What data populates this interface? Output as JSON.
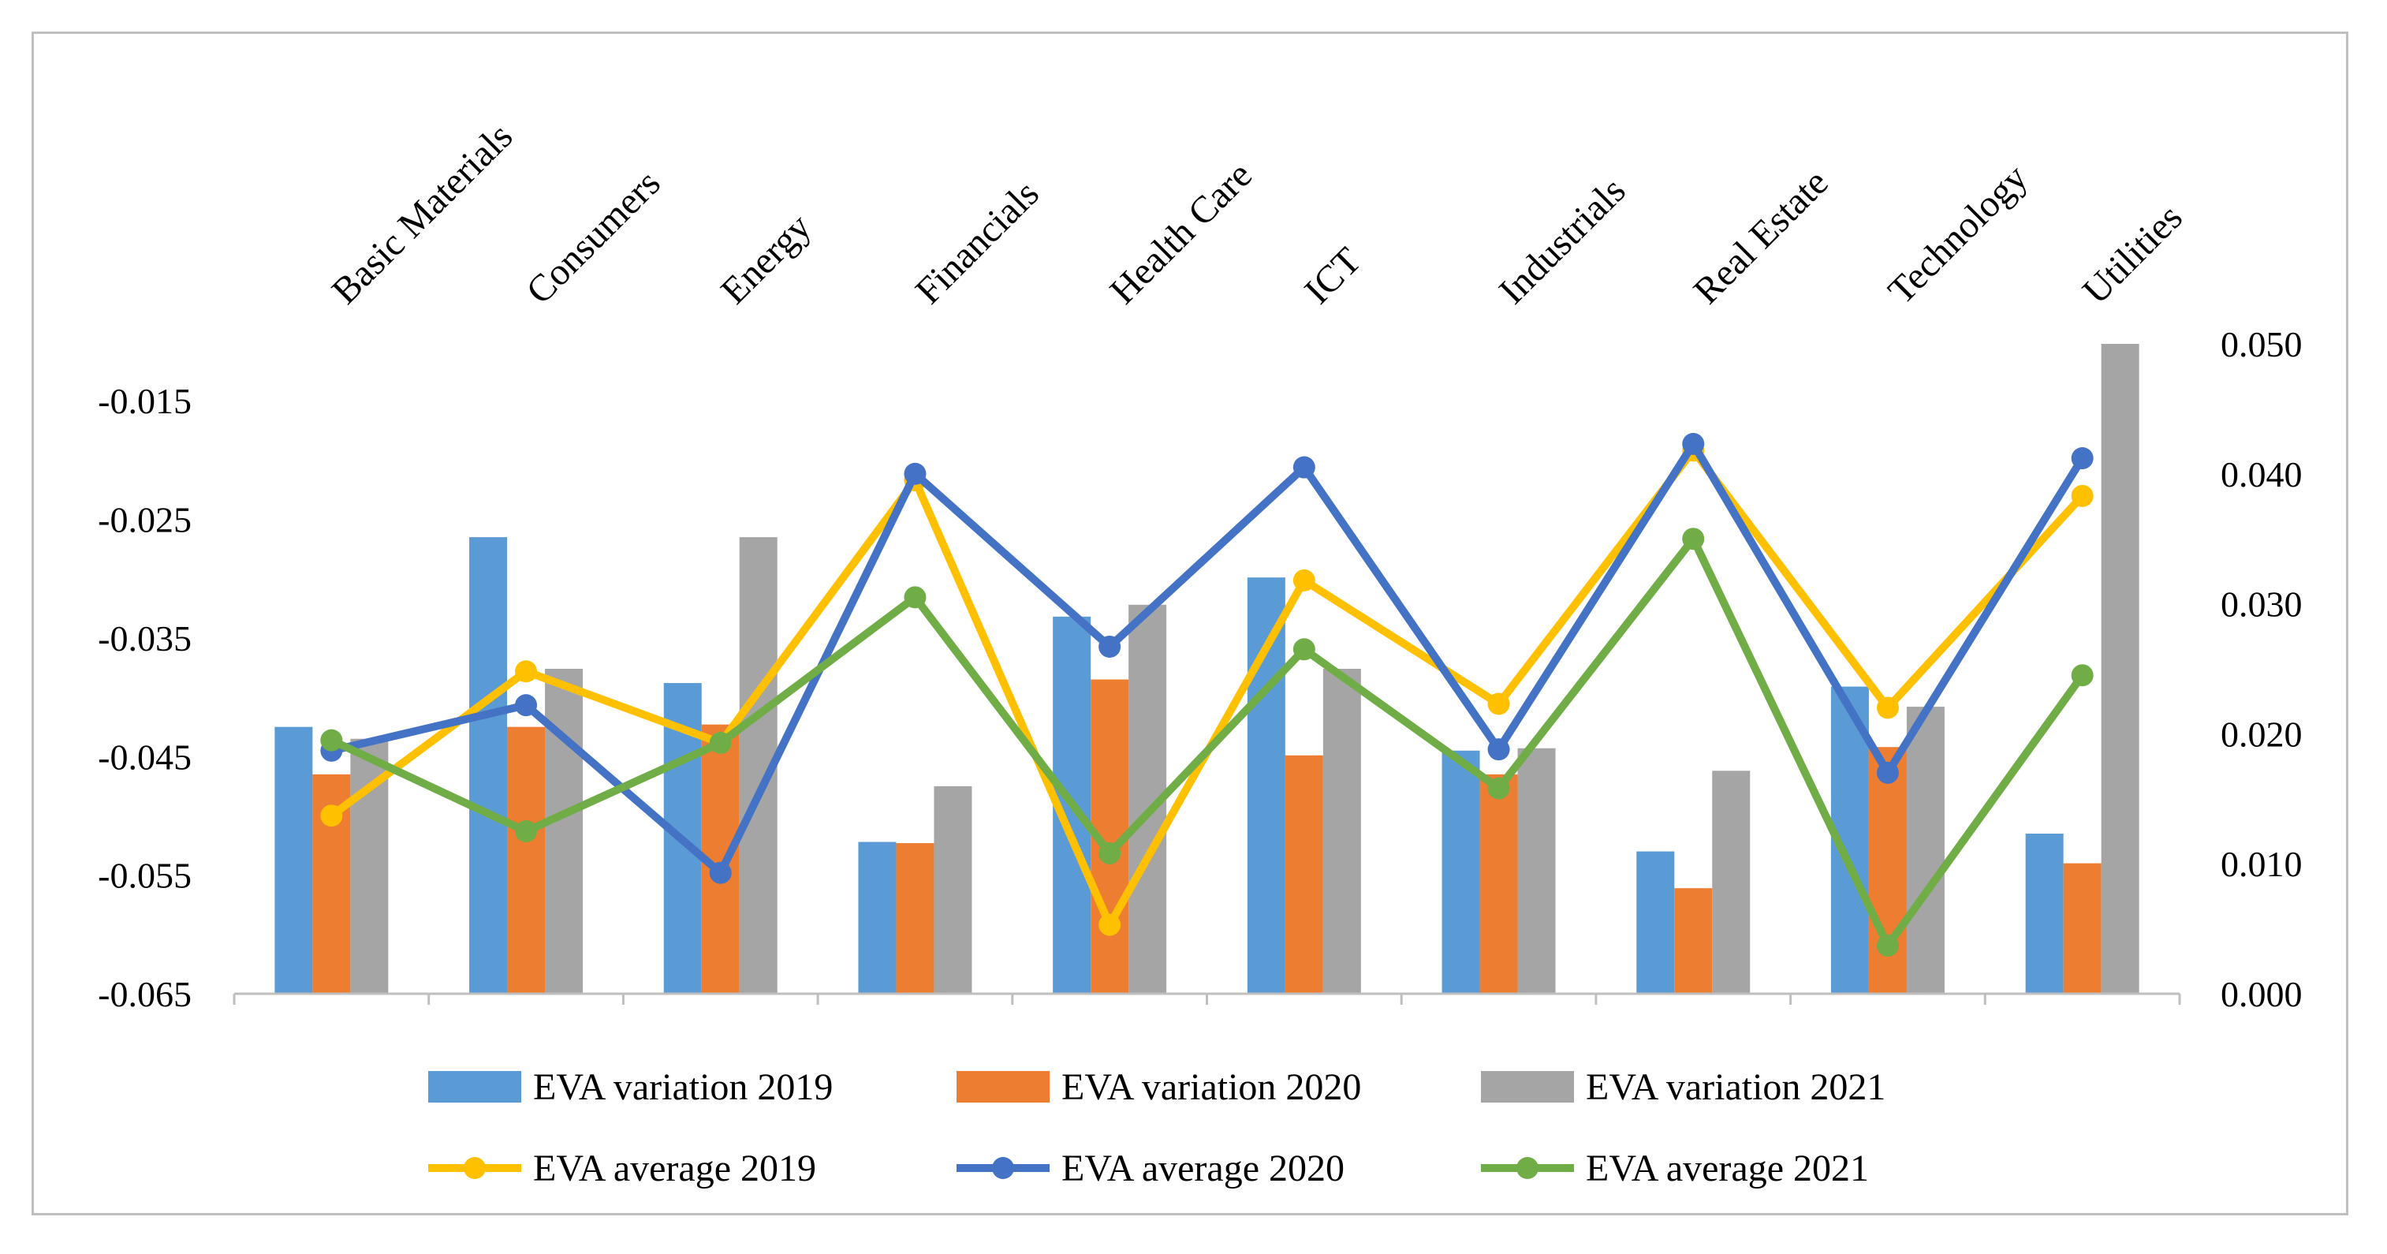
{
  "chart_data": {
    "type": "bar",
    "categories": [
      "Basic Materials",
      "Consumers",
      "Energy",
      "Financials",
      "Health Care",
      "ICT",
      "Industrials",
      "Real Estate",
      "Technology",
      "Utilities"
    ],
    "bar_series": [
      {
        "name": "EVA variation 2019",
        "color": "#5b9bd5",
        "values": [
          -0.0425,
          -0.0265,
          -0.0388,
          -0.0522,
          -0.0332,
          -0.0299,
          -0.0445,
          -0.053,
          -0.0391,
          -0.0515
        ]
      },
      {
        "name": "EVA variation 2020",
        "color": "#ed7d31",
        "values": [
          -0.0465,
          -0.0425,
          -0.0423,
          -0.0523,
          -0.0385,
          -0.0449,
          -0.0465,
          -0.0561,
          -0.0442,
          -0.054
        ]
      },
      {
        "name": "EVA variation 2021",
        "color": "#a5a5a5",
        "values": [
          -0.0435,
          -0.0376,
          -0.0265,
          -0.0475,
          -0.0322,
          -0.0376,
          -0.0443,
          -0.0462,
          -0.0408,
          -0.0102
        ]
      }
    ],
    "line_series": [
      {
        "name": "EVA average 2019",
        "color": "#ffc000",
        "values": [
          0.0137,
          0.0248,
          0.0193,
          0.0395,
          0.0053,
          0.0318,
          0.0223,
          0.0418,
          0.022,
          0.0383
        ]
      },
      {
        "name": "EVA average 2020",
        "color": "#4472c4",
        "values": [
          0.0187,
          0.0222,
          0.0093,
          0.04,
          0.0267,
          0.0405,
          0.0188,
          0.0423,
          0.017,
          0.0412
        ]
      },
      {
        "name": "EVA average 2021",
        "color": "#70ad47",
        "values": [
          0.0195,
          0.0125,
          0.0193,
          0.0305,
          0.0108,
          0.0265,
          0.0158,
          0.035,
          0.0037,
          0.0245
        ]
      }
    ],
    "y_left": {
      "min": -0.065,
      "max": -0.0102,
      "ticks": [
        -0.065,
        -0.055,
        -0.045,
        -0.035,
        -0.025,
        -0.015
      ],
      "tick_labels": [
        "-0.065",
        "-0.055",
        "-0.045",
        "-0.035",
        "-0.025",
        "-0.015"
      ]
    },
    "y_right": {
      "min": 0.0,
      "max": 0.05,
      "ticks": [
        0.0,
        0.01,
        0.02,
        0.03,
        0.04,
        0.05
      ],
      "tick_labels": [
        "0.000",
        "0.010",
        "0.020",
        "0.030",
        "0.040",
        "0.050"
      ]
    },
    "title": "",
    "xlabel": "",
    "ylabel": "",
    "legend_position": "bottom",
    "grid": false,
    "category_label_position": "top-rotated"
  }
}
